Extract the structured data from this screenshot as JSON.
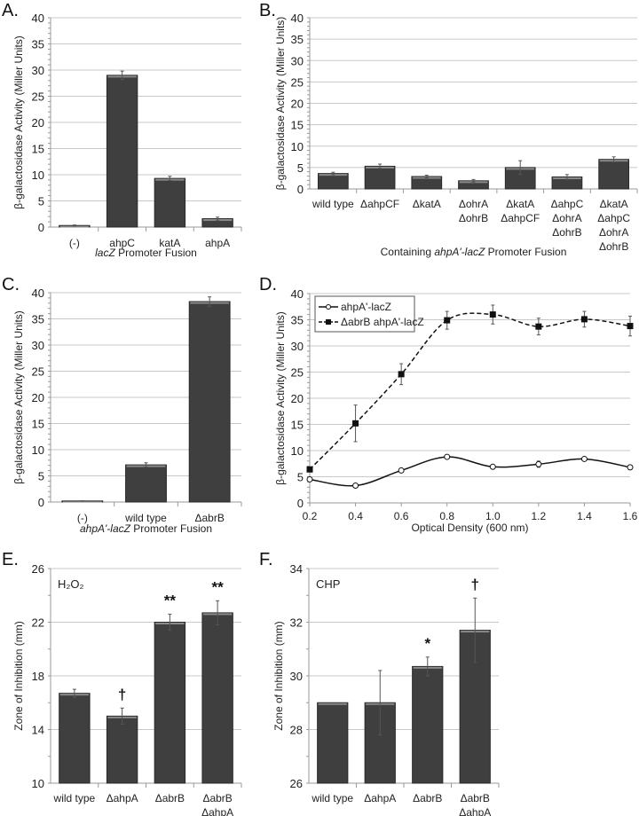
{
  "chart_data": [
    {
      "panel": "A.",
      "type": "bar",
      "categories": [
        [
          "(-)"
        ],
        [
          "ahpC"
        ],
        [
          "katA"
        ],
        [
          "ahpA"
        ]
      ],
      "values": [
        0.3,
        29.0,
        9.3,
        1.6
      ],
      "errors": [
        0.1,
        0.8,
        0.4,
        0.3
      ],
      "ylabel": "β-galactosidase Activity (Miller Units)",
      "xlabel": "lacZ Promoter Fusion",
      "xlabel_italic": "lacZ",
      "ylim": [
        0,
        40
      ],
      "yticks": [
        0,
        5,
        10,
        15,
        20,
        25,
        30,
        35,
        40
      ],
      "grid": true
    },
    {
      "panel": "B.",
      "type": "bar",
      "categories": [
        [
          "wild type"
        ],
        [
          "ΔahpCF"
        ],
        [
          "ΔkatA"
        ],
        [
          "ΔohrA",
          "ΔohrB"
        ],
        [
          "ΔkatA",
          "ΔahpCF"
        ],
        [
          "ΔahpC",
          "ΔohrA",
          "ΔohrB"
        ],
        [
          "ΔkatA",
          "ΔahpC",
          "ΔohrA",
          "ΔohrB"
        ]
      ],
      "values": [
        3.6,
        5.3,
        2.9,
        1.9,
        5.0,
        2.8,
        6.9
      ],
      "errors": [
        0.3,
        0.5,
        0.3,
        0.3,
        1.6,
        0.55,
        0.6
      ],
      "ylabel": "β-galactosidase Activity (Miller Units)",
      "xlabel": "Containing ahpA'-lacZ Promoter Fusion",
      "xlabel_italic": "ahpA'-lacZ",
      "ylim": [
        0,
        40
      ],
      "yticks": [
        0,
        5,
        10,
        15,
        20,
        25,
        30,
        35,
        40
      ],
      "grid": true
    },
    {
      "panel": "C.",
      "type": "bar",
      "categories": [
        [
          "(-)"
        ],
        [
          "wild type"
        ],
        [
          "ΔabrB"
        ]
      ],
      "values": [
        0.2,
        7.1,
        38.3
      ],
      "errors": [
        0.05,
        0.4,
        0.9
      ],
      "ylabel": "β-galactosidase Activity (Miller Units)",
      "xlabel": "ahpA'-lacZ Promoter Fusion",
      "xlabel_italic": "ahpA'-lacZ",
      "ylim": [
        0,
        40
      ],
      "yticks": [
        0,
        5,
        10,
        15,
        20,
        25,
        30,
        35,
        40
      ],
      "grid": true
    },
    {
      "panel": "D.",
      "type": "line",
      "x": [
        0.2,
        0.4,
        0.6,
        0.8,
        1.0,
        1.2,
        1.4,
        1.6
      ],
      "xticks": [
        "0.2",
        "0.4",
        "0.6",
        "0.8",
        "1.0",
        "1.2",
        "1.4",
        "1.6"
      ],
      "series": [
        {
          "name": "ahpA'-lacZ",
          "values": [
            4.5,
            3.3,
            6.2,
            8.8,
            6.9,
            7.4,
            8.4,
            6.8
          ],
          "errors": [
            0.2,
            0.2,
            0.2,
            0.2,
            0.3,
            0.6,
            0.3,
            0.2
          ],
          "marker": "open-circle",
          "dash": "solid"
        },
        {
          "name": "ΔabrB ahpA'-lacZ",
          "values": [
            6.4,
            15.2,
            24.6,
            34.9,
            36.0,
            33.7,
            35.1,
            33.8
          ],
          "errors": [
            0.2,
            3.5,
            2.0,
            1.7,
            1.8,
            1.6,
            1.5,
            1.9
          ],
          "marker": "filled-square",
          "dash": "dashed"
        }
      ],
      "ylabel": "β-galactosidase Activity (Miller Units)",
      "xlabel": "Optical Density (600 nm)",
      "xlim": [
        0.2,
        1.6
      ],
      "ylim": [
        0,
        40
      ],
      "yticks": [
        0,
        5,
        10,
        15,
        20,
        25,
        30,
        35,
        40
      ],
      "legend": "top-left",
      "grid": true
    },
    {
      "panel": "E.",
      "type": "bar",
      "inset_label": "H₂O₂",
      "categories": [
        [
          "wild type"
        ],
        [
          "ΔahpA"
        ],
        [
          "ΔabrB"
        ],
        [
          "ΔabrB",
          "ΔahpA"
        ]
      ],
      "values": [
        16.7,
        15.0,
        22.0,
        22.7
      ],
      "errors": [
        0.3,
        0.6,
        0.6,
        0.9
      ],
      "annotations": [
        "",
        "†",
        "**",
        "**"
      ],
      "ylabel": "Zone of Inhibition (mm)",
      "xlabel": "",
      "ylim": [
        10,
        26
      ],
      "yticks": [
        10,
        14,
        18,
        22,
        26
      ],
      "grid": true
    },
    {
      "panel": "F.",
      "type": "bar",
      "inset_label": "CHP",
      "categories": [
        [
          "wild type"
        ],
        [
          "ΔahpA"
        ],
        [
          "ΔabrB"
        ],
        [
          "ΔabrB",
          "ΔahpA"
        ]
      ],
      "values": [
        29.0,
        29.0,
        30.35,
        31.7
      ],
      "errors": [
        0,
        1.2,
        0.35,
        1.2
      ],
      "annotations": [
        "",
        "",
        "*",
        "†"
      ],
      "ylabel": "Zone of Inhibition (mm)",
      "xlabel": "",
      "ylim": [
        26,
        34
      ],
      "yticks": [
        26,
        28,
        30,
        32,
        34
      ],
      "grid": true
    }
  ]
}
